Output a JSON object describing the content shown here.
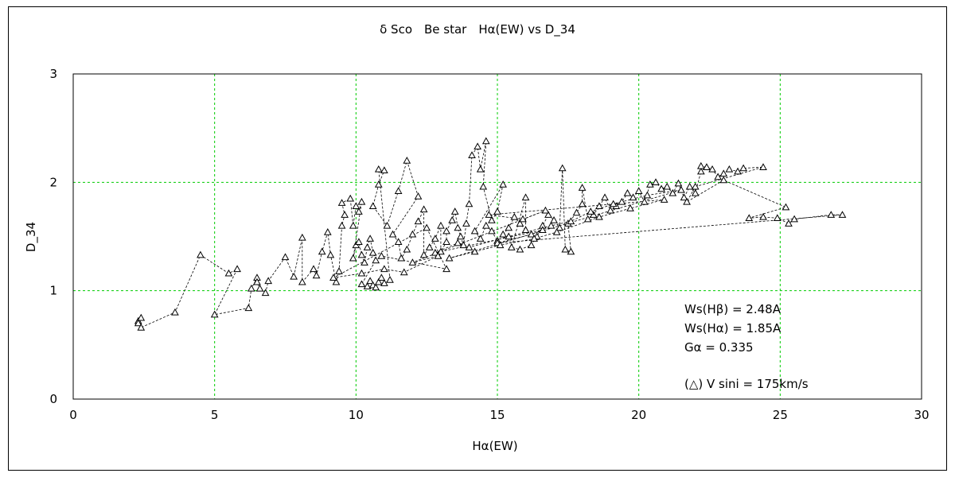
{
  "chart_data": {
    "type": "scatter",
    "title": "δ Sco　Be star　Hα(EW) vs D_34",
    "xlabel": "Hα(EW)",
    "ylabel": "D_34",
    "xlim": [
      0,
      30
    ],
    "ylim": [
      0,
      3
    ],
    "xticks": [
      "0",
      "5",
      "10",
      "15",
      "20",
      "25",
      "30"
    ],
    "yticks": [
      "0",
      "1",
      "2",
      "3"
    ],
    "grid": true,
    "marker": "triangle",
    "connected_by_dashed_line": true,
    "colors": {
      "grid": "#00cc00",
      "marker": "#000000",
      "line": "#000000"
    },
    "annotations": [
      "Ws(Hβ) = 2.48A",
      "Ws(Hα) = 1.85A",
      "Gα = 0.335",
      "(△) V sini = 175km/s"
    ],
    "points": [
      [
        2.3,
        0.72
      ],
      [
        2.4,
        0.75
      ],
      [
        2.3,
        0.7
      ],
      [
        2.4,
        0.66
      ],
      [
        3.6,
        0.8
      ],
      [
        4.5,
        1.33
      ],
      [
        5.5,
        1.16
      ],
      [
        5.8,
        1.2
      ],
      [
        5.0,
        0.78
      ],
      [
        6.2,
        0.84
      ],
      [
        6.3,
        1.02
      ],
      [
        6.5,
        1.12
      ],
      [
        6.5,
        1.08
      ],
      [
        6.6,
        1.02
      ],
      [
        6.8,
        0.98
      ],
      [
        6.9,
        1.09
      ],
      [
        7.5,
        1.31
      ],
      [
        7.8,
        1.13
      ],
      [
        8.1,
        1.49
      ],
      [
        8.1,
        1.08
      ],
      [
        8.5,
        1.2
      ],
      [
        8.6,
        1.14
      ],
      [
        8.8,
        1.36
      ],
      [
        9.0,
        1.54
      ],
      [
        9.1,
        1.33
      ],
      [
        9.3,
        1.08
      ],
      [
        9.4,
        1.18
      ],
      [
        9.5,
        1.6
      ],
      [
        9.6,
        1.7
      ],
      [
        9.5,
        1.81
      ],
      [
        9.8,
        1.85
      ],
      [
        9.9,
        1.6
      ],
      [
        10.0,
        1.78
      ],
      [
        10.1,
        1.73
      ],
      [
        10.2,
        1.82
      ],
      [
        9.9,
        1.3
      ],
      [
        10.0,
        1.42
      ],
      [
        10.1,
        1.45
      ],
      [
        10.2,
        1.33
      ],
      [
        10.3,
        1.26
      ],
      [
        10.4,
        1.4
      ],
      [
        10.5,
        1.48
      ],
      [
        10.6,
        1.35
      ],
      [
        10.7,
        1.28
      ],
      [
        10.2,
        1.06
      ],
      [
        10.4,
        1.04
      ],
      [
        10.5,
        1.09
      ],
      [
        10.6,
        1.05
      ],
      [
        10.7,
        1.03
      ],
      [
        10.8,
        1.08
      ],
      [
        10.9,
        1.12
      ],
      [
        11.0,
        1.07
      ],
      [
        11.2,
        1.1
      ],
      [
        10.8,
        2.12
      ],
      [
        11.0,
        2.11
      ],
      [
        10.8,
        1.98
      ],
      [
        10.6,
        1.78
      ],
      [
        11.1,
        1.6
      ],
      [
        11.5,
        1.92
      ],
      [
        11.8,
        2.2
      ],
      [
        12.2,
        1.87
      ],
      [
        11.3,
        1.52
      ],
      [
        11.5,
        1.45
      ],
      [
        11.6,
        1.3
      ],
      [
        11.8,
        1.38
      ],
      [
        12.0,
        1.52
      ],
      [
        12.2,
        1.64
      ],
      [
        12.4,
        1.75
      ],
      [
        12.4,
        1.33
      ],
      [
        12.6,
        1.4
      ],
      [
        12.8,
        1.48
      ],
      [
        13.0,
        1.6
      ],
      [
        13.0,
        1.36
      ],
      [
        13.2,
        1.45
      ],
      [
        13.2,
        1.55
      ],
      [
        13.4,
        1.65
      ],
      [
        13.5,
        1.73
      ],
      [
        13.6,
        1.58
      ],
      [
        13.7,
        1.5
      ],
      [
        13.8,
        1.42
      ],
      [
        13.9,
        1.62
      ],
      [
        14.0,
        1.8
      ],
      [
        14.1,
        2.25
      ],
      [
        14.3,
        2.33
      ],
      [
        14.4,
        2.12
      ],
      [
        14.6,
        2.38
      ],
      [
        14.5,
        1.96
      ],
      [
        14.8,
        1.65
      ],
      [
        15.0,
        1.73
      ],
      [
        15.2,
        1.98
      ],
      [
        14.2,
        1.55
      ],
      [
        14.4,
        1.48
      ],
      [
        14.6,
        1.6
      ],
      [
        14.8,
        1.55
      ],
      [
        15.0,
        1.46
      ],
      [
        15.2,
        1.52
      ],
      [
        15.4,
        1.58
      ],
      [
        15.6,
        1.68
      ],
      [
        15.8,
        1.62
      ],
      [
        16.0,
        1.56
      ],
      [
        16.0,
        1.86
      ],
      [
        15.5,
        1.4
      ],
      [
        15.8,
        1.38
      ],
      [
        16.2,
        1.42
      ],
      [
        16.4,
        1.5
      ],
      [
        16.6,
        1.6
      ],
      [
        16.8,
        1.7
      ],
      [
        17.0,
        1.65
      ],
      [
        17.2,
        1.58
      ],
      [
        17.3,
        2.13
      ],
      [
        17.4,
        1.38
      ],
      [
        17.6,
        1.36
      ],
      [
        17.5,
        1.62
      ],
      [
        17.8,
        1.72
      ],
      [
        18.0,
        1.8
      ],
      [
        18.0,
        1.95
      ],
      [
        18.2,
        1.66
      ],
      [
        18.4,
        1.7
      ],
      [
        18.6,
        1.78
      ],
      [
        18.8,
        1.86
      ],
      [
        19.0,
        1.74
      ],
      [
        19.2,
        1.78
      ],
      [
        19.4,
        1.82
      ],
      [
        19.6,
        1.9
      ],
      [
        19.8,
        1.86
      ],
      [
        20.0,
        1.92
      ],
      [
        20.2,
        1.82
      ],
      [
        20.4,
        1.98
      ],
      [
        20.6,
        2.0
      ],
      [
        20.8,
        1.94
      ],
      [
        21.0,
        1.96
      ],
      [
        21.2,
        1.9
      ],
      [
        21.4,
        1.99
      ],
      [
        21.6,
        1.86
      ],
      [
        21.8,
        1.96
      ],
      [
        22.0,
        1.9
      ],
      [
        22.2,
        2.1
      ],
      [
        22.2,
        2.15
      ],
      [
        22.4,
        2.14
      ],
      [
        22.6,
        2.12
      ],
      [
        22.8,
        2.05
      ],
      [
        23.0,
        2.08
      ],
      [
        23.2,
        2.12
      ],
      [
        23.5,
        2.1
      ],
      [
        23.7,
        2.13
      ],
      [
        24.4,
        2.14
      ],
      [
        22.0,
        1.96
      ],
      [
        21.7,
        1.82
      ],
      [
        23.0,
        2.02
      ],
      [
        25.2,
        1.77
      ],
      [
        23.9,
        1.67
      ],
      [
        24.4,
        1.68
      ],
      [
        24.9,
        1.67
      ],
      [
        25.3,
        1.62
      ],
      [
        25.5,
        1.66
      ],
      [
        26.8,
        1.7
      ],
      [
        27.2,
        1.7
      ],
      [
        15.0,
        1.44
      ],
      [
        16.2,
        1.52
      ],
      [
        16.6,
        1.56
      ],
      [
        12.8,
        1.35
      ],
      [
        13.6,
        1.44
      ],
      [
        14.0,
        1.4
      ],
      [
        15.4,
        1.5
      ],
      [
        16.9,
        1.6
      ],
      [
        17.6,
        1.64
      ],
      [
        18.3,
        1.73
      ],
      [
        19.1,
        1.8
      ],
      [
        20.3,
        1.88
      ],
      [
        21.5,
        1.93
      ],
      [
        13.3,
        1.3
      ],
      [
        14.2,
        1.36
      ],
      [
        15.1,
        1.42
      ],
      [
        16.3,
        1.48
      ],
      [
        17.1,
        1.54
      ],
      [
        18.6,
        1.68
      ],
      [
        19.7,
        1.76
      ],
      [
        20.9,
        1.84
      ],
      [
        14.7,
        1.7
      ],
      [
        15.9,
        1.66
      ],
      [
        16.7,
        1.74
      ],
      [
        12.0,
        1.26
      ],
      [
        12.9,
        1.32
      ],
      [
        11.7,
        1.17
      ],
      [
        11.0,
        1.2
      ],
      [
        10.2,
        1.16
      ],
      [
        9.2,
        1.12
      ],
      [
        12.5,
        1.58
      ],
      [
        13.2,
        1.2
      ],
      [
        10.9,
        1.32
      ]
    ]
  }
}
